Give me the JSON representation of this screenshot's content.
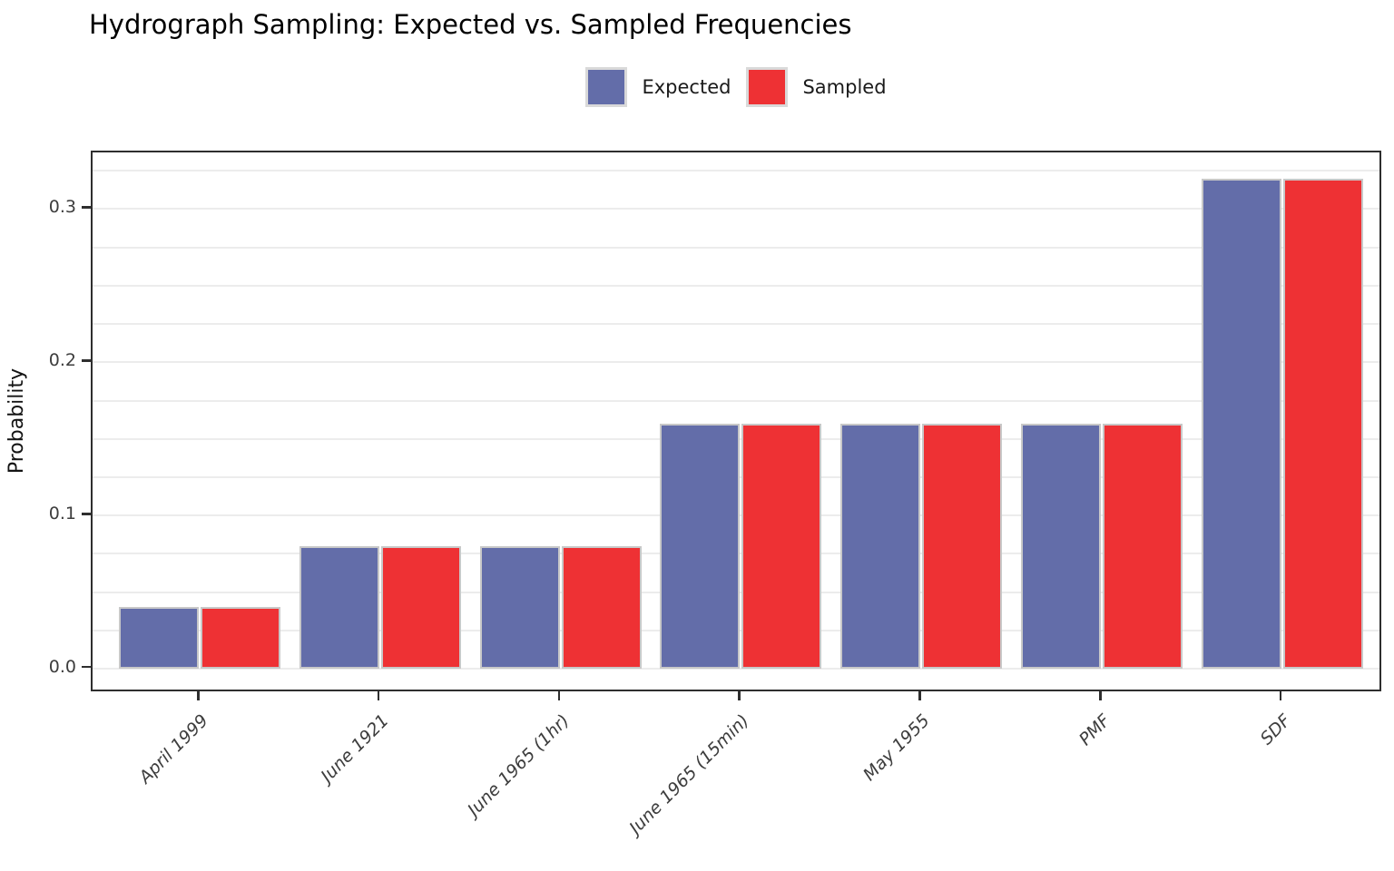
{
  "title": "Hydrograph Sampling: Expected vs. Sampled Frequencies",
  "legend": {
    "items": [
      {
        "label": "Expected",
        "color": "#636DA9"
      },
      {
        "label": "Sampled",
        "color": "#EE3134"
      }
    ]
  },
  "chart_data": {
    "type": "bar",
    "title": "Hydrograph Sampling: Expected vs. Sampled Frequencies",
    "categories": [
      "April 1999",
      "June 1921",
      "June 1965 (1hr)",
      "June 1965 (15min)",
      "May 1955",
      "PMF",
      "SDF"
    ],
    "series": [
      {
        "name": "Expected",
        "color": "#636DA9",
        "values": [
          0.04,
          0.08,
          0.08,
          0.16,
          0.16,
          0.16,
          0.32
        ]
      },
      {
        "name": "Sampled",
        "color": "#EE3134",
        "values": [
          0.04,
          0.08,
          0.08,
          0.16,
          0.16,
          0.16,
          0.32
        ]
      }
    ],
    "xlabel": "",
    "ylabel": "Probability",
    "ylim": [
      -0.016,
      0.337
    ],
    "yticks": [
      0,
      0.1,
      0.2,
      0.3
    ],
    "ytick_labels": [
      "0.0",
      "0.1",
      "0.2",
      "0.3"
    ],
    "grid": true,
    "grid_interval": 0.025,
    "legend_position": "top-center",
    "colors": {
      "bar_edge": "#c8c8c8",
      "grid_color": "#ececec",
      "axis_color": "#2e2e2e",
      "tick_label_color": "#3d3d3d"
    }
  }
}
